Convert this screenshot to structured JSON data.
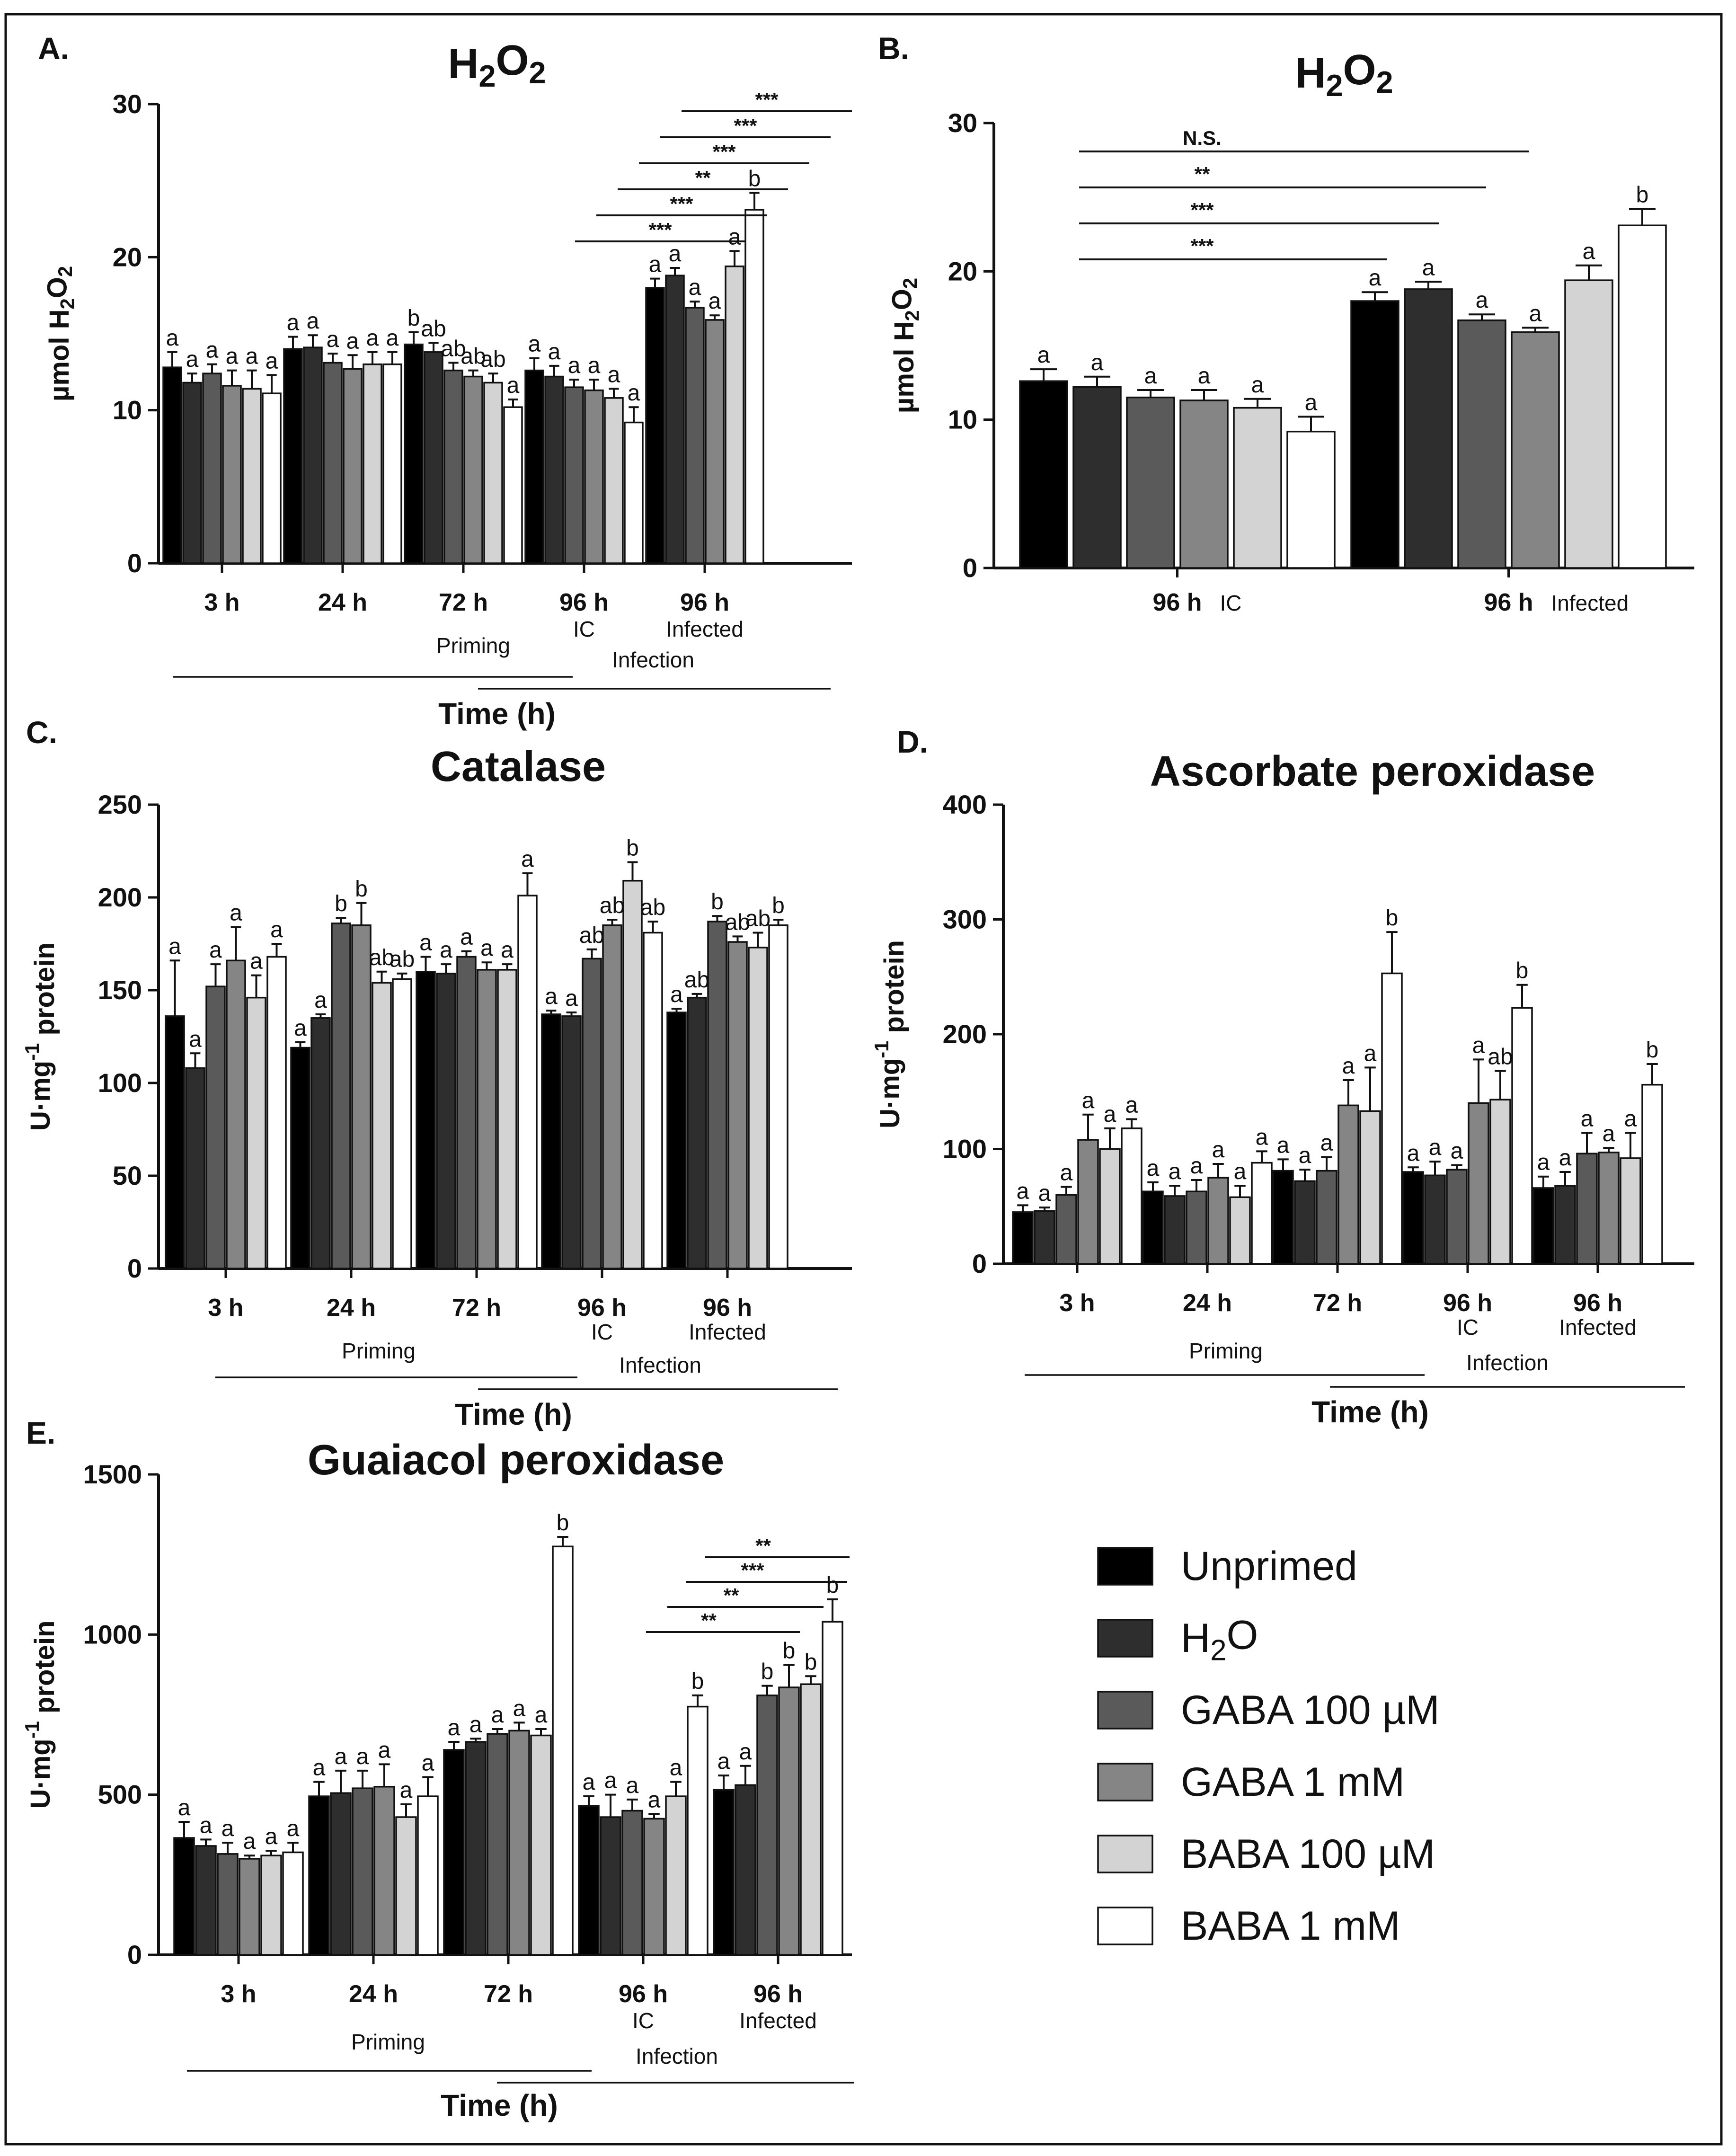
{
  "legend": {
    "items": [
      {
        "label": "Unprimed",
        "color": "#000000"
      },
      {
        "label": "H₂O",
        "color": "#2e2e2e"
      },
      {
        "label": "GABA 100 µM",
        "color": "#5a5a5a"
      },
      {
        "label": "GABA 1 mM",
        "color": "#858585"
      },
      {
        "label": "BABA 100 µM",
        "color": "#d3d3d3"
      },
      {
        "label": "BABA 1 mM",
        "color": "#ffffff"
      }
    ]
  },
  "chart_data": [
    {
      "id": "A",
      "panel_label": "A.",
      "type": "bar",
      "title": "H₂O₂",
      "ylabel": "µmol H₂O₂",
      "xlabel": "Time (h)",
      "ylim": [
        0,
        30
      ],
      "yticks": [
        0,
        10,
        20,
        30
      ],
      "groups": [
        {
          "label": "3 h",
          "sub": ""
        },
        {
          "label": "24 h",
          "sub": ""
        },
        {
          "label": "72 h",
          "sub": ""
        },
        {
          "label": "96 h",
          "sub": "IC"
        },
        {
          "label": "96 h",
          "sub": "Infected"
        }
      ],
      "group_captions": {
        "priming": "Priming",
        "infection": "Infection"
      },
      "values": [
        [
          12.8,
          11.8,
          12.4,
          11.6,
          11.4,
          11.1
        ],
        [
          14.0,
          14.1,
          13.1,
          12.7,
          13.0,
          13.0
        ],
        [
          14.3,
          13.8,
          12.6,
          12.2,
          11.8,
          10.2
        ],
        [
          12.6,
          12.2,
          11.5,
          11.3,
          10.8,
          9.2
        ],
        [
          18.0,
          18.8,
          16.7,
          15.9,
          19.4,
          23.1
        ]
      ],
      "errors": [
        [
          1.0,
          0.6,
          0.6,
          1.0,
          1.2,
          1.2
        ],
        [
          0.8,
          0.8,
          0.6,
          0.9,
          0.8,
          0.8
        ],
        [
          0.8,
          0.6,
          0.5,
          0.4,
          0.6,
          0.5
        ],
        [
          0.8,
          0.7,
          0.5,
          0.7,
          0.6,
          1.0
        ],
        [
          0.6,
          0.5,
          0.4,
          0.3,
          1.0,
          1.1
        ]
      ],
      "letters": [
        [
          "a",
          "a",
          "a",
          "a",
          "a",
          "a"
        ],
        [
          "a",
          "a",
          "a",
          "a",
          "a",
          "a"
        ],
        [
          "b",
          "ab",
          "ab",
          "ab",
          "ab",
          "a"
        ],
        [
          "a",
          "a",
          "a",
          "a",
          "a",
          "a"
        ],
        [
          "a",
          "a",
          "a",
          "a",
          "a",
          "b"
        ]
      ],
      "significance": [
        {
          "from": [
            3,
            0
          ],
          "to": [
            4,
            0
          ],
          "label": "***"
        },
        {
          "from": [
            3,
            1
          ],
          "to": [
            4,
            1
          ],
          "label": "***"
        },
        {
          "from": [
            3,
            2
          ],
          "to": [
            4,
            2
          ],
          "label": "***"
        },
        {
          "from": [
            3,
            3
          ],
          "to": [
            4,
            3
          ],
          "label": "**"
        },
        {
          "from": [
            3,
            4
          ],
          "to": [
            4,
            4
          ],
          "label": "***"
        },
        {
          "from": [
            3,
            5
          ],
          "to": [
            4,
            5
          ],
          "label": "***"
        }
      ]
    },
    {
      "id": "B",
      "panel_label": "B.",
      "type": "bar",
      "title": "H₂O₂",
      "ylabel": "µmol H₂O₂",
      "xlabel": "",
      "ylim": [
        0,
        30
      ],
      "yticks": [
        0,
        10,
        20,
        30
      ],
      "groups": [
        {
          "label": "96 h",
          "sub": "IC"
        },
        {
          "label": "96 h",
          "sub": "Infected"
        }
      ],
      "values": [
        [
          12.6,
          12.2,
          11.5,
          11.3,
          10.8,
          9.2
        ],
        [
          18.0,
          18.8,
          16.7,
          15.9,
          19.4,
          23.1
        ]
      ],
      "errors": [
        [
          0.8,
          0.7,
          0.5,
          0.7,
          0.6,
          1.0
        ],
        [
          0.6,
          0.5,
          0.4,
          0.3,
          1.0,
          1.1
        ]
      ],
      "letters": [
        [
          "a",
          "a",
          "a",
          "a",
          "a",
          "a"
        ],
        [
          "a",
          "a",
          "a",
          "a",
          "a",
          "b"
        ]
      ],
      "significance": [
        {
          "from": [
            0,
            0
          ],
          "to": [
            1,
            3
          ],
          "label": "N.S."
        },
        {
          "from": [
            0,
            0
          ],
          "to": [
            1,
            2
          ],
          "label": "**"
        },
        {
          "from": [
            0,
            0
          ],
          "to": [
            1,
            1
          ],
          "label": "***"
        },
        {
          "from": [
            0,
            0
          ],
          "to": [
            1,
            0
          ],
          "label": "***"
        }
      ]
    },
    {
      "id": "C",
      "panel_label": "C.",
      "type": "bar",
      "title": "Catalase",
      "ylabel": "U·mg⁻¹ protein",
      "xlabel": "Time (h)",
      "ylim": [
        0,
        250
      ],
      "yticks": [
        0,
        50,
        100,
        150,
        200,
        250
      ],
      "groups": [
        {
          "label": "3 h",
          "sub": ""
        },
        {
          "label": "24 h",
          "sub": ""
        },
        {
          "label": "72 h",
          "sub": ""
        },
        {
          "label": "96 h",
          "sub": "IC"
        },
        {
          "label": "96 h",
          "sub": "Infected"
        }
      ],
      "group_captions": {
        "priming": "Priming",
        "infection": "Infection"
      },
      "values": [
        [
          136,
          108,
          152,
          166,
          146,
          168
        ],
        [
          119,
          135,
          186,
          185,
          154,
          156
        ],
        [
          160,
          159,
          168,
          161,
          161,
          201
        ],
        [
          137,
          136,
          167,
          185,
          209,
          181
        ],
        [
          138,
          146,
          187,
          176,
          173,
          185
        ]
      ],
      "errors": [
        [
          30,
          8,
          12,
          18,
          12,
          7
        ],
        [
          3,
          2,
          3,
          12,
          6,
          3
        ],
        [
          8,
          5,
          3,
          4,
          3,
          12
        ],
        [
          2,
          2,
          5,
          3,
          10,
          6
        ],
        [
          2,
          2,
          3,
          3,
          8,
          3
        ]
      ],
      "letters": [
        [
          "a",
          "a",
          "a",
          "a",
          "a",
          "a"
        ],
        [
          "a",
          "a",
          "b",
          "b",
          "ab",
          "ab"
        ],
        [
          "a",
          "a",
          "a",
          "a",
          "a",
          "a"
        ],
        [
          "a",
          "a",
          "ab",
          "ab",
          "b",
          "ab"
        ],
        [
          "a",
          "ab",
          "b",
          "ab",
          "ab",
          "b"
        ]
      ],
      "significance": []
    },
    {
      "id": "D",
      "panel_label": "D.",
      "type": "bar",
      "title": "Ascorbate peroxidase",
      "ylabel": "U·mg⁻¹ protein",
      "xlabel": "Time (h)",
      "ylim": [
        0,
        400
      ],
      "yticks": [
        0,
        100,
        200,
        300,
        400
      ],
      "groups": [
        {
          "label": "3 h",
          "sub": ""
        },
        {
          "label": "24 h",
          "sub": ""
        },
        {
          "label": "72 h",
          "sub": ""
        },
        {
          "label": "96 h",
          "sub": "IC"
        },
        {
          "label": "96 h",
          "sub": "Infected"
        }
      ],
      "group_captions": {
        "priming": "Priming",
        "infection": "Infection"
      },
      "values": [
        [
          45,
          46,
          60,
          108,
          100,
          118
        ],
        [
          63,
          59,
          63,
          75,
          58,
          88
        ],
        [
          81,
          72,
          81,
          138,
          133,
          253
        ],
        [
          80,
          77,
          82,
          140,
          143,
          223
        ],
        [
          66,
          68,
          96,
          97,
          92,
          156
        ]
      ],
      "errors": [
        [
          6,
          3,
          7,
          22,
          18,
          8
        ],
        [
          8,
          9,
          10,
          12,
          10,
          10
        ],
        [
          10,
          10,
          12,
          22,
          38,
          36
        ],
        [
          4,
          12,
          4,
          38,
          25,
          20
        ],
        [
          10,
          12,
          18,
          4,
          22,
          18
        ]
      ],
      "letters": [
        [
          "a",
          "a",
          "a",
          "a",
          "a",
          "a"
        ],
        [
          "a",
          "a",
          "a",
          "a",
          "a",
          "a"
        ],
        [
          "a",
          "a",
          "a",
          "a",
          "a",
          "b"
        ],
        [
          "a",
          "a",
          "a",
          "a",
          "ab",
          "b"
        ],
        [
          "a",
          "a",
          "a",
          "a",
          "a",
          "b"
        ]
      ],
      "significance": []
    },
    {
      "id": "E",
      "panel_label": "E.",
      "type": "bar",
      "title": "Guaiacol peroxidase",
      "ylabel": "U·mg⁻¹ protein",
      "xlabel": "Time (h)",
      "ylim": [
        0,
        1500
      ],
      "yticks": [
        0,
        500,
        1000,
        1500
      ],
      "groups": [
        {
          "label": "3 h",
          "sub": ""
        },
        {
          "label": "24 h",
          "sub": ""
        },
        {
          "label": "72 h",
          "sub": ""
        },
        {
          "label": "96 h",
          "sub": "IC"
        },
        {
          "label": "96 h",
          "sub": "Infected"
        }
      ],
      "group_captions": {
        "priming": "Priming",
        "infection": "Infection"
      },
      "values": [
        [
          365,
          340,
          315,
          300,
          310,
          320
        ],
        [
          495,
          505,
          520,
          525,
          430,
          495
        ],
        [
          640,
          665,
          690,
          700,
          685,
          1275
        ],
        [
          465,
          430,
          450,
          425,
          495,
          775
        ],
        [
          515,
          530,
          810,
          835,
          845,
          1040
        ]
      ],
      "errors": [
        [
          50,
          20,
          35,
          10,
          15,
          30
        ],
        [
          45,
          70,
          55,
          70,
          40,
          60
        ],
        [
          25,
          10,
          15,
          25,
          20,
          30
        ],
        [
          30,
          70,
          35,
          15,
          45,
          35
        ],
        [
          45,
          60,
          30,
          70,
          25,
          70
        ]
      ],
      "letters": [
        [
          "a",
          "a",
          "a",
          "a",
          "a",
          "a"
        ],
        [
          "a",
          "a",
          "a",
          "a",
          "a",
          "a"
        ],
        [
          "a",
          "a",
          "a",
          "a",
          "a",
          "b"
        ],
        [
          "a",
          "a",
          "a",
          "a",
          "a",
          "b"
        ],
        [
          "a",
          "a",
          "b",
          "b",
          "b",
          "b"
        ]
      ],
      "significance": [
        {
          "from": [
            3,
            3
          ],
          "to": [
            4,
            2
          ],
          "label": "**"
        },
        {
          "from": [
            3,
            4
          ],
          "to": [
            4,
            3
          ],
          "label": "**"
        },
        {
          "from": [
            3,
            5
          ],
          "to": [
            4,
            4
          ],
          "label": "***"
        },
        {
          "from": [
            3,
            5
          ],
          "to": [
            4,
            5
          ],
          "label": "**"
        }
      ]
    }
  ]
}
